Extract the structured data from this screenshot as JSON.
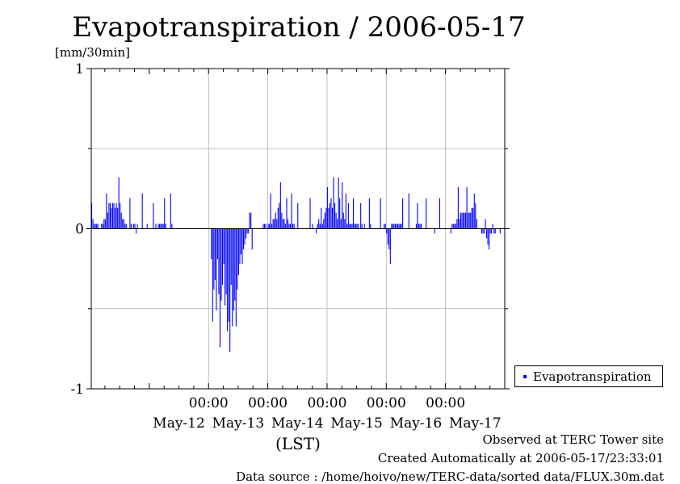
{
  "chart_data": {
    "type": "bar",
    "title": "Evapotranspiration / 2006-05-17",
    "ylabel": "[mm/30min]",
    "xlabel": "(LST)",
    "ylim": [
      -1,
      1
    ],
    "yticks": [
      {
        "value": 1,
        "label": "1"
      },
      {
        "value": 0,
        "label": "0"
      },
      {
        "value": -1,
        "label": "-1"
      }
    ],
    "xlim": [
      -0.98,
      6.0
    ],
    "xticks_time": [
      {
        "pos": 1,
        "label": "00:00"
      },
      {
        "pos": 2,
        "label": "00:00"
      },
      {
        "pos": 3,
        "label": "00:00"
      },
      {
        "pos": 4,
        "label": "00:00"
      },
      {
        "pos": 5,
        "label": "00:00"
      }
    ],
    "xticks_date": [
      {
        "pos": 0.5,
        "label": "May-12"
      },
      {
        "pos": 1.5,
        "label": "May-13"
      },
      {
        "pos": 2.5,
        "label": "May-14"
      },
      {
        "pos": 3.5,
        "label": "May-15"
      },
      {
        "pos": 4.5,
        "label": "May-16"
      },
      {
        "pos": 5.5,
        "label": "May-17"
      }
    ],
    "grid": true,
    "legend_position": "bottom-right outside",
    "series": [
      {
        "name": "Evapotranspiration",
        "color": "#0000ff",
        "start": -0.98,
        "step_days": 0.020833,
        "values": [
          0.16,
          0.06,
          0.03,
          0.03,
          0.03,
          0.03,
          0,
          0,
          0.03,
          0.03,
          0.06,
          0.06,
          0.22,
          0.1,
          0.16,
          0.16,
          0.13,
          0.16,
          0.16,
          0.13,
          0.16,
          0.13,
          0.32,
          0.16,
          0.1,
          0.06,
          0.06,
          0.03,
          0.03,
          0,
          0,
          0.19,
          0.03,
          0,
          0.03,
          0.03,
          -0.03,
          0.03,
          0,
          0,
          0,
          0.22,
          0,
          0,
          0,
          0.03,
          0,
          0,
          0,
          0,
          0.16,
          0,
          0.03,
          0,
          0.03,
          0.03,
          0.03,
          0.03,
          0.03,
          0.19,
          0.03,
          0,
          0,
          0,
          0.22,
          0.03,
          0,
          0,
          0,
          0,
          0,
          0,
          0,
          0,
          0,
          0,
          0,
          0,
          0,
          0,
          0,
          0,
          0,
          0,
          0,
          0,
          0,
          0,
          0,
          0,
          0,
          0,
          0,
          0,
          0,
          0,
          0,
          -0.19,
          -0.58,
          -0.38,
          -0.32,
          -0.51,
          -0.19,
          -0.41,
          -0.74,
          -0.45,
          -0.35,
          -0.22,
          -0.48,
          -0.41,
          -0.64,
          -0.58,
          -0.77,
          -0.35,
          -0.61,
          -0.51,
          -0.45,
          -0.61,
          -0.38,
          -0.29,
          -0.22,
          -0.16,
          -0.22,
          -0.13,
          -0.1,
          -0.06,
          -0.03,
          -0.03,
          0.1,
          0.1,
          -0.13,
          0,
          0,
          0,
          0,
          0,
          0,
          0,
          0,
          0.03,
          0.03,
          0.03,
          0,
          0.03,
          0.03,
          0.22,
          0.03,
          0.06,
          0.06,
          0.1,
          0.06,
          0.13,
          0.16,
          0.29,
          0.1,
          0.06,
          0.06,
          0.03,
          0.19,
          0.06,
          0.03,
          0.03,
          0.22,
          0.03,
          0.03,
          0,
          0,
          0.16,
          0,
          0,
          0,
          0,
          0,
          0,
          0,
          0,
          0,
          0.19,
          0,
          0.03,
          0,
          0,
          -0.03,
          0.03,
          0.06,
          0.03,
          0.13,
          0.03,
          0.06,
          0.1,
          0.13,
          0.26,
          0.13,
          0.16,
          0.19,
          0.13,
          0.32,
          0.16,
          0.1,
          0.06,
          0.32,
          0.19,
          0.06,
          0.29,
          0.1,
          0.06,
          0.22,
          0.03,
          0.16,
          0.03,
          0.03,
          0.03,
          0.19,
          0.03,
          0.03,
          0.03,
          0.03,
          0,
          0.16,
          0.03,
          0,
          0.03,
          0,
          0,
          0,
          0.19,
          0.03,
          0,
          0,
          0,
          0,
          0,
          0,
          0,
          0.19,
          0,
          0,
          0.03,
          0.03,
          -0.03,
          -0.1,
          -0.13,
          -0.22,
          0.03,
          0.03,
          0.03,
          0.03,
          0.03,
          0.03,
          0.03,
          0.03,
          0.03,
          0.19,
          0,
          0,
          0,
          0,
          0.22,
          0,
          0,
          0,
          0,
          0,
          0.03,
          0.16,
          0.03,
          0.03,
          0.03,
          0,
          0,
          0,
          0.19,
          0,
          0,
          0,
          0,
          0,
          0,
          -0.03,
          0,
          0,
          0,
          0.19,
          0,
          0,
          0,
          0,
          0,
          0,
          0,
          0,
          -0.03,
          0.03,
          0.03,
          0.03,
          0.03,
          0.06,
          0.26,
          0.06,
          0.1,
          0.1,
          0.1,
          0.1,
          0.1,
          0.26,
          0.1,
          0.1,
          0.1,
          0.13,
          0.13,
          0.22,
          0.16,
          0.06,
          0,
          0,
          0,
          -0.03,
          -0.03,
          -0.03,
          0.06,
          -0.06,
          -0.1,
          -0.13,
          -0.03,
          -0.03,
          0.03,
          -0.03,
          -0.03,
          0,
          0,
          0,
          -0.03
        ]
      }
    ]
  },
  "legend_label": "Evapotranspiration",
  "footer": {
    "line1": "Observed at TERC Tower site",
    "line2": "Created Automatically at 2006-05-17/23:33:01",
    "line3": "Data source : /home/hoivo/new/TERC-data/sorted  data/FLUX.30m.dat"
  }
}
